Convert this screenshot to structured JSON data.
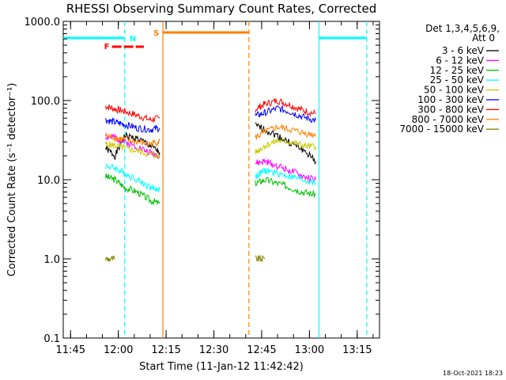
{
  "chart_data": {
    "type": "line",
    "title": "RHESSI Observing Summary Count Rates, Corrected",
    "ylabel": "Corrected Count Rate (s⁻¹ detector⁻¹)",
    "xlabel": "Start Time (11-Jan-12 11:42:42)",
    "footer": "18-Oct-2021 18:23",
    "y_scale": "log",
    "ylim": [
      0.1,
      1000
    ],
    "xlim": [
      "11:42:42",
      "13:22:00"
    ],
    "x_ticks": [
      "11:45",
      "12:00",
      "12:15",
      "12:30",
      "12:45",
      "13:00",
      "13:15"
    ],
    "y_ticks": [
      "0.1",
      "1.0",
      "10.0",
      "100.0",
      "1000.0"
    ],
    "legend": {
      "placement": "right-outside",
      "header": [
        "Det 1,3,4,5,6,9,",
        "Att 0"
      ]
    },
    "series": [
      {
        "name": "3 - 6 keV",
        "color": "#000000",
        "points": [
          [
            "11:56",
            25
          ],
          [
            "11:59",
            20
          ],
          [
            "12:02",
            36
          ],
          [
            "12:06",
            33
          ],
          [
            "12:10",
            27
          ],
          [
            "12:13",
            22
          ],
          [
            "12:43",
            48
          ],
          [
            "12:46",
            43
          ],
          [
            "12:50",
            36
          ],
          [
            "12:54",
            29
          ],
          [
            "12:58",
            24
          ],
          [
            "13:02",
            17
          ]
        ]
      },
      {
        "name": "6 - 12 keV",
        "color": "#ff00ff",
        "points": [
          [
            "11:56",
            35
          ],
          [
            "11:59",
            34
          ],
          [
            "12:02",
            30
          ],
          [
            "12:06",
            26
          ],
          [
            "12:10",
            22
          ],
          [
            "12:13",
            20
          ],
          [
            "12:43",
            16
          ],
          [
            "12:46",
            17
          ],
          [
            "12:50",
            15
          ],
          [
            "12:54",
            13
          ],
          [
            "12:58",
            11
          ],
          [
            "13:02",
            10
          ]
        ]
      },
      {
        "name": "12 - 25 keV",
        "color": "#00c000",
        "points": [
          [
            "11:56",
            11
          ],
          [
            "11:59",
            10
          ],
          [
            "12:02",
            8
          ],
          [
            "12:06",
            7
          ],
          [
            "12:10",
            5.5
          ],
          [
            "12:13",
            5
          ],
          [
            "12:43",
            9
          ],
          [
            "12:46",
            10
          ],
          [
            "12:50",
            9
          ],
          [
            "12:54",
            8
          ],
          [
            "12:58",
            7
          ],
          [
            "13:02",
            6.5
          ]
        ]
      },
      {
        "name": "25 - 50 keV",
        "color": "#00ffff",
        "points": [
          [
            "11:56",
            15
          ],
          [
            "11:59",
            14
          ],
          [
            "12:02",
            12
          ],
          [
            "12:06",
            10
          ],
          [
            "12:10",
            8
          ],
          [
            "12:13",
            7.5
          ],
          [
            "12:43",
            11
          ],
          [
            "12:46",
            13
          ],
          [
            "12:50",
            12
          ],
          [
            "12:54",
            11
          ],
          [
            "12:58",
            10
          ],
          [
            "13:02",
            9
          ]
        ]
      },
      {
        "name": "50 - 100 keV",
        "color": "#c8c800",
        "points": [
          [
            "11:56",
            28
          ],
          [
            "11:59",
            27
          ],
          [
            "12:02",
            25
          ],
          [
            "12:06",
            23
          ],
          [
            "12:10",
            21
          ],
          [
            "12:13",
            20
          ],
          [
            "12:43",
            22
          ],
          [
            "12:46",
            27
          ],
          [
            "12:50",
            31
          ],
          [
            "12:54",
            30
          ],
          [
            "12:58",
            27
          ],
          [
            "13:02",
            26
          ]
        ]
      },
      {
        "name": "100 - 300 keV",
        "color": "#0000ff",
        "points": [
          [
            "11:56",
            57
          ],
          [
            "11:59",
            53
          ],
          [
            "12:02",
            50
          ],
          [
            "12:06",
            45
          ],
          [
            "12:10",
            43
          ],
          [
            "12:13",
            45
          ],
          [
            "12:43",
            64
          ],
          [
            "12:46",
            70
          ],
          [
            "12:50",
            80
          ],
          [
            "12:54",
            72
          ],
          [
            "12:58",
            62
          ],
          [
            "13:02",
            56
          ]
        ]
      },
      {
        "name": "300 - 800 keV",
        "color": "#ff0000",
        "points": [
          [
            "11:56",
            85
          ],
          [
            "11:59",
            78
          ],
          [
            "12:02",
            73
          ],
          [
            "12:06",
            65
          ],
          [
            "12:10",
            57
          ],
          [
            "12:13",
            60
          ],
          [
            "12:43",
            78
          ],
          [
            "12:46",
            90
          ],
          [
            "12:50",
            100
          ],
          [
            "12:54",
            88
          ],
          [
            "12:58",
            75
          ],
          [
            "13:02",
            68
          ]
        ]
      },
      {
        "name": "800 - 7000 keV",
        "color": "#ff7f00",
        "points": [
          [
            "11:56",
            36
          ],
          [
            "11:59",
            34
          ],
          [
            "12:02",
            32
          ],
          [
            "12:06",
            30
          ],
          [
            "12:10",
            28
          ],
          [
            "12:13",
            31
          ],
          [
            "12:43",
            34
          ],
          [
            "12:46",
            40
          ],
          [
            "12:50",
            46
          ],
          [
            "12:54",
            43
          ],
          [
            "12:58",
            39
          ],
          [
            "13:02",
            37
          ]
        ]
      },
      {
        "name": "7000 - 15000 keV",
        "color": "#808000",
        "points": [
          [
            "11:56",
            1.0
          ],
          [
            "11:59",
            1.0
          ],
          [
            "12:43",
            1.0
          ],
          [
            "12:46",
            1.0
          ]
        ]
      }
    ],
    "annotations": [
      {
        "label": "N",
        "color": "#00ffff",
        "marker": "00ffff-dashed",
        "x": "12:02"
      },
      {
        "label": "S",
        "color": "#ff7f00",
        "marker": "ff7f00-solid",
        "x": "12:14"
      },
      {
        "label": "",
        "color": "#ff7f00",
        "marker": "ff7f00-dashed",
        "x": "12:41"
      },
      {
        "label": "",
        "color": "#00ffff",
        "marker": "00ffff-solid",
        "x": "13:03"
      },
      {
        "label": "",
        "color": "#00ffff",
        "marker": "00ffff-dashed",
        "x": "13:18"
      },
      {
        "label": "F",
        "color": "#ff0000",
        "marker": "flare-bar"
      }
    ],
    "segments": [
      {
        "name": "night-1",
        "from": "11:42:42",
        "to": "12:02",
        "color": "#00ffff"
      },
      {
        "name": "saa",
        "from": "12:14",
        "to": "12:41",
        "color": "#ff7f00"
      },
      {
        "name": "night-2",
        "from": "13:03",
        "to": "13:18",
        "color": "#00ffff"
      },
      {
        "name": "flare",
        "from": "11:58",
        "to": "12:08",
        "color": "#ff0000"
      }
    ]
  }
}
